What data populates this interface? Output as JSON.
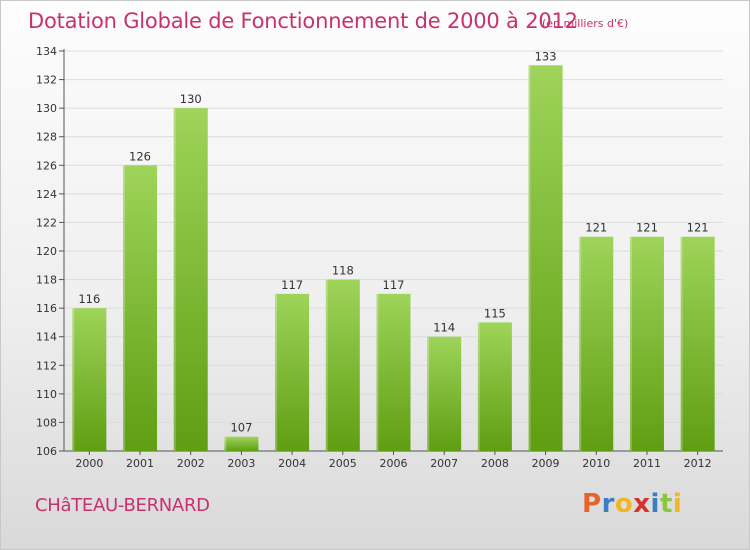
{
  "header": {
    "title": "Dotation Globale de Fonctionnement de 2000 à 2012",
    "subtitle": "(en milliers d'€)"
  },
  "footer": {
    "commune": "CHâTEAU-BERNARD",
    "brand_letters": [
      {
        "char": "P",
        "color": "#e8622c"
      },
      {
        "char": "r",
        "color": "#3b7ec0"
      },
      {
        "char": "o",
        "color": "#f2b624"
      },
      {
        "char": "x",
        "color": "#d6322f"
      },
      {
        "char": "i",
        "color": "#3b7ec0"
      },
      {
        "char": "t",
        "color": "#8cc63f"
      },
      {
        "char": "i",
        "color": "#f2b624"
      }
    ]
  },
  "colors": {
    "bar_light": "#9ed45a",
    "bar_dark": "#5f9e12",
    "accent": "#c8326c",
    "axis_text": "#333333",
    "grid": "#dcdcdc"
  },
  "chart_data": {
    "type": "bar",
    "categories": [
      "2000",
      "2001",
      "2002",
      "2003",
      "2004",
      "2005",
      "2006",
      "2007",
      "2008",
      "2009",
      "2010",
      "2011",
      "2012"
    ],
    "values": [
      116,
      126,
      130,
      107,
      117,
      118,
      117,
      114,
      115,
      133,
      121,
      121,
      121
    ],
    "ylim": [
      106,
      134
    ],
    "yticks": [
      106,
      108,
      110,
      112,
      114,
      116,
      118,
      120,
      122,
      124,
      126,
      128,
      130,
      132,
      134
    ],
    "grid": true
  }
}
